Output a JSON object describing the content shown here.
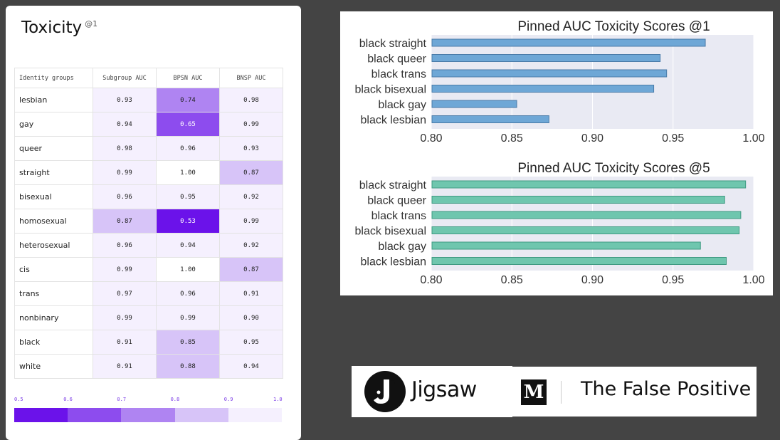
{
  "card": {
    "title": "Toxicity",
    "superscript": "@1"
  },
  "colors": {
    "background": "#444444",
    "bar_at1": "#6ea7d6",
    "bar_at1_edge": "#4a7ba8",
    "bar_at5": "#6fc6ae",
    "bar_at5_edge": "#3f9a82",
    "plot_bg": "#e9eaf3"
  },
  "heatmap_scale": {
    "ticks": [
      "0.5",
      "0.6",
      "0.7",
      "0.8",
      "0.9",
      "1.0"
    ],
    "colors": [
      "#6b12ea",
      "#8d4cee",
      "#af84f2",
      "#d7c4f8",
      "#f5f0fe"
    ]
  },
  "chart_data": [
    {
      "type": "table",
      "columns": [
        "Identity groups",
        "Subgroup AUC",
        "BPSN AUC",
        "BNSP AUC"
      ],
      "rows": [
        [
          "lesbian",
          "0.93",
          "0.74",
          "0.98"
        ],
        [
          "gay",
          "0.94",
          "0.65",
          "0.99"
        ],
        [
          "queer",
          "0.98",
          "0.96",
          "0.93"
        ],
        [
          "straight",
          "0.99",
          "1.00",
          "0.87"
        ],
        [
          "bisexual",
          "0.96",
          "0.95",
          "0.92"
        ],
        [
          "homosexual",
          "0.87",
          "0.53",
          "0.99"
        ],
        [
          "heterosexual",
          "0.96",
          "0.94",
          "0.92"
        ],
        [
          "cis",
          "0.99",
          "1.00",
          "0.87"
        ],
        [
          "trans",
          "0.97",
          "0.96",
          "0.91"
        ],
        [
          "nonbinary",
          "0.99",
          "0.99",
          "0.90"
        ],
        [
          "black",
          "0.91",
          "0.85",
          "0.95"
        ],
        [
          "white",
          "0.91",
          "0.88",
          "0.94"
        ]
      ]
    },
    {
      "type": "bar",
      "orientation": "horizontal",
      "title": "Pinned AUC Toxicity Scores @1",
      "categories": [
        "black straight",
        "black queer",
        "black trans",
        "black bisexual",
        "black gay",
        "black lesbian"
      ],
      "values": [
        0.97,
        0.942,
        0.946,
        0.938,
        0.853,
        0.873
      ],
      "xlim": [
        0.8,
        1.0
      ],
      "xticks": [
        "0.80",
        "0.85",
        "0.90",
        "0.95",
        "1.00"
      ],
      "grid": true
    },
    {
      "type": "bar",
      "orientation": "horizontal",
      "title": "Pinned AUC Toxicity Scores @5",
      "categories": [
        "black straight",
        "black queer",
        "black trans",
        "black bisexual",
        "black gay",
        "black lesbian"
      ],
      "values": [
        0.995,
        0.982,
        0.992,
        0.991,
        0.967,
        0.983
      ],
      "xlim": [
        0.8,
        1.0
      ],
      "xticks": [
        "0.80",
        "0.85",
        "0.90",
        "0.95",
        "1.00"
      ],
      "grid": true
    }
  ],
  "logos": {
    "jigsaw": "Jigsaw",
    "medium_mark": "M",
    "publication": "The False Positive"
  }
}
